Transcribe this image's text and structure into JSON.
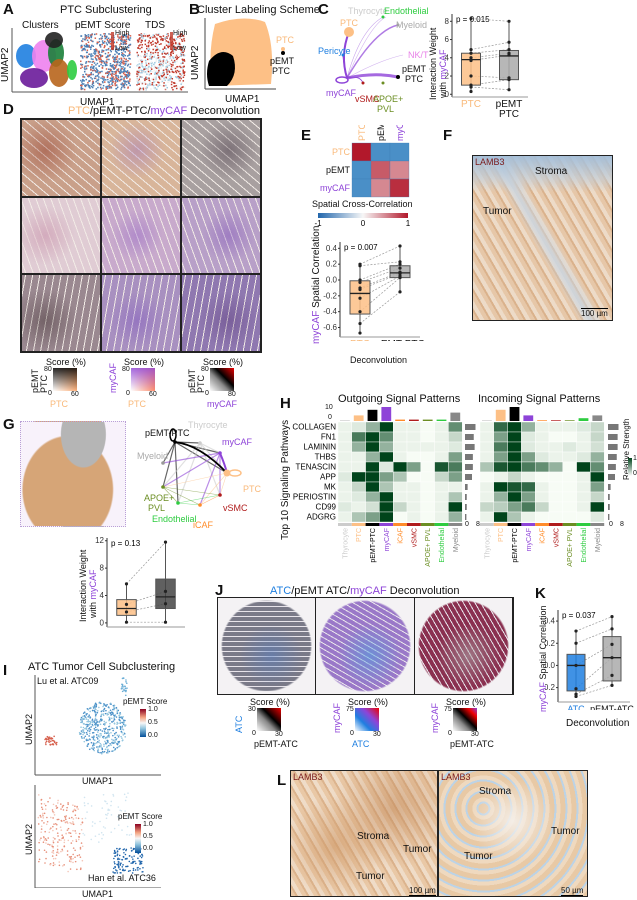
{
  "panels": {
    "A": "A",
    "B": "B",
    "C": "C",
    "D": "D",
    "E": "E",
    "F": "F",
    "G": "G",
    "H": "H",
    "I": "I",
    "J": "J",
    "K": "K",
    "L": "L"
  },
  "a": {
    "title": "PTC Subclustering",
    "sub": [
      "Clusters",
      "pEMT Score",
      "TDS"
    ],
    "high": "High",
    "low": "Low",
    "x": "UMAP1",
    "y": "UMAP2"
  },
  "b": {
    "title": "Cluster Labeling Scheme",
    "ptc": "PTC",
    "pemt": "pEMT",
    "pemt2": "PTC",
    "x": "UMAP1",
    "y": "UMAP2"
  },
  "c": {
    "nodes": [
      "Thyrocyte",
      "Endothelial",
      "PTC",
      "Myeloid",
      "Pericyte",
      "NK/T",
      "pEMT",
      "PTC",
      "myCAF",
      "vSMC",
      "APOE+",
      "PVL"
    ]
  },
  "d": {
    "title_ptc": "PTC",
    "title_sep1": "/pEMT-PTC/",
    "title_my": "myCAF",
    "title_rest": " Deconvolution",
    "legends": [
      {
        "score": "Score (%)",
        "ylab": "pEMT PTC",
        "xlab": "PTC",
        "ymax": "80",
        "xmax": "60",
        "zero": "0"
      },
      {
        "score": "Score (%)",
        "ylab": "myCAF",
        "xlab": "PTC",
        "ymax": "80",
        "xmax": "60",
        "zero": "0"
      },
      {
        "score": "Score (%)",
        "ylab": "pEMT PTC",
        "xlab": "myCAF",
        "ymax": "80",
        "xmax": "80",
        "zero": "0"
      }
    ]
  },
  "e": {
    "rows": [
      "PTC",
      "pEMT",
      "myCAF"
    ],
    "cols": [
      "PTC",
      "pEMT",
      "myCAF"
    ],
    "cbar_title": "Spatial Cross-Correlation",
    "cbar_ticks": [
      "-1",
      "0",
      "1"
    ],
    "ylab_my": "myCAF",
    "ylab_rest": " Spatial Correlation",
    "xlab": "Deconvolution"
  },
  "f": {
    "stain": "LAMB3",
    "stroma": "Stroma",
    "tumor": "Tumor",
    "scale": "100 µm"
  },
  "g": {
    "nodes": [
      "pEMT-PTC",
      "Thyrocyte",
      "myCAF",
      "Myeloid",
      "PTC",
      "APOE+",
      "PVL",
      "Endothelial",
      "iCAF",
      "vSMC"
    ]
  },
  "h": {
    "out_title": "Outgoing Signal Patterns",
    "in_title": "Incoming Signal Patterns",
    "ylab": "Top 10 Signaling Pathways",
    "legend": "Relative Strength",
    "leg_hi": "1",
    "leg_lo": "0",
    "top_hi": "10",
    "top_lo": "0",
    "bar_lo": "0",
    "bar_hi": "8"
  },
  "i": {
    "title": "ATC Tumor Cell Subclustering",
    "p1": "Lu et al. ATC09",
    "p2": "Han et al. ATC36",
    "legend": "pEMT Score",
    "ticks": [
      "1.0",
      "0.5",
      "0.0"
    ],
    "x": "UMAP1",
    "y": "UMAP2"
  },
  "j": {
    "title_atc": "ATC",
    "title_sep": "/pEMT ATC/",
    "title_my": "myCAF",
    "title_rest": " Deconvolution",
    "legends": [
      {
        "score": "Score (%)",
        "ylab": "ATC",
        "xlab": "pEMT-ATC",
        "ymax": "30",
        "xmax": "30",
        "zero": "0"
      },
      {
        "score": "Score (%)",
        "ylab": "myCAF",
        "xlab": "ATC",
        "ymax": "75",
        "xmax": "30",
        "zero": "0"
      },
      {
        "score": "Score (%)",
        "ylab": "myCAF",
        "xlab": "pEMT-ATC",
        "ymax": "75",
        "xmax": "30",
        "zero": "0"
      }
    ]
  },
  "k": {
    "ylab_my": "myCAF",
    "ylab_rest": " Spatial Correlation",
    "xlab": "Deconvolution"
  },
  "l": {
    "stain": "LAMB3",
    "stroma": "Stroma",
    "tumor": "Tumor",
    "scale1": "100 µm",
    "scale2": "50 µm"
  },
  "colors": {
    "ptc": "#fdc086",
    "pemt": "#000000",
    "mycaf": "#8e44d8",
    "atc": "#1f7fe0",
    "heat": "#00441b"
  },
  "chart_data": [
    {
      "id": "C",
      "type": "box",
      "title": "",
      "p": "p = 0.015",
      "ylabel": "Interaction Weight with myCAF",
      "ylim": [
        -0.3,
        8.8
      ],
      "yticks": [
        0,
        2,
        4,
        6,
        8
      ],
      "groups": [
        {
          "name": "PTC",
          "color": "#fdc086",
          "q1": 1,
          "median": 3.8,
          "q3": 4.5,
          "points": [
            8.3,
            4.9,
            4.5,
            4,
            3.7,
            2,
            1,
            0.8,
            0.3
          ]
        },
        {
          "name": "pEMT PTC",
          "color": "#aaaaaa",
          "q1": 1.6,
          "median": 4.2,
          "q3": 4.8,
          "points": [
            8,
            5.7,
            4.9,
            4.5,
            4.3,
            1.8,
            1.6,
            0.5
          ]
        }
      ]
    },
    {
      "id": "E-heat",
      "type": "heatmap",
      "rows": [
        "PTC",
        "pEMT",
        "myCAF"
      ],
      "cols": [
        "PTC",
        "pEMT",
        "myCAF"
      ],
      "values": [
        [
          1,
          -0.5,
          -0.5
        ],
        [
          -0.5,
          0.7,
          0.5
        ],
        [
          -0.5,
          0.5,
          0.9
        ]
      ],
      "clim": [
        -1,
        1
      ]
    },
    {
      "id": "E",
      "type": "box",
      "p": "p = 0.007",
      "ylabel": "myCAF Spatial Correlation",
      "xlabel": "Deconvolution",
      "ylim": [
        -0.72,
        0.48
      ],
      "yticks": [
        -0.6,
        -0.4,
        -0.2,
        0.0,
        0.2,
        0.4
      ],
      "groups": [
        {
          "name": "PTC",
          "color": "#fdc086",
          "q1": -0.43,
          "median": -0.17,
          "q3": -0.01,
          "points": [
            0.2,
            0.18,
            0.0,
            -0.03,
            -0.1,
            -0.12,
            -0.23,
            -0.4,
            -0.55,
            -0.67
          ]
        },
        {
          "name": "pEMT-PTC",
          "color": "#aaaaaa",
          "q1": 0.03,
          "median": 0.09,
          "q3": 0.18,
          "points": [
            0.43,
            0.23,
            0.2,
            0.15,
            0.1,
            0.08,
            0.05,
            0.03,
            -0.15
          ]
        }
      ]
    },
    {
      "id": "G",
      "type": "box",
      "p": "p = 0.13",
      "ylabel": "Interaction Weight with myCAF",
      "ylim": [
        -0.6,
        12.4
      ],
      "yticks": [
        0,
        4,
        8,
        12
      ],
      "groups": [
        {
          "name": "PTC",
          "color": "#fdc086",
          "q1": 1.1,
          "median": 2.1,
          "q3": 3.4,
          "points": [
            5.7,
            2.7,
            1.6,
            0.1
          ]
        },
        {
          "name": "pEMT PTC",
          "color": "#444444",
          "q1": 2.1,
          "median": 3.8,
          "q3": 6.4,
          "points": [
            11.8,
            4.6,
            2.8,
            0.1
          ]
        }
      ]
    },
    {
      "id": "K",
      "type": "box",
      "p": "p = 0.037",
      "ylabel": "myCAF Spatial Correlation",
      "xlabel": "Deconvolution",
      "ylim": [
        -0.33,
        0.5
      ],
      "yticks": [
        -0.2,
        0.0,
        0.2,
        0.4
      ],
      "groups": [
        {
          "name": "ATC",
          "color": "#1f7fe0",
          "q1": -0.23,
          "median": 0,
          "q3": 0.1,
          "points": [
            0.31,
            0.2,
            0,
            -0.21,
            -0.26,
            -0.28
          ]
        },
        {
          "name": "pEMT-ATC",
          "color": "#aaaaaa",
          "q1": -0.14,
          "median": 0.07,
          "q3": 0.26,
          "points": [
            0.44,
            0.33,
            0.19,
            0.07,
            -0.09,
            -0.18
          ]
        }
      ]
    },
    {
      "id": "H",
      "type": "heatmap",
      "rows": [
        "COLLAGEN",
        "FN1",
        "LAMININ",
        "THBS",
        "TENASCIN",
        "APP",
        "MK",
        "PERIOSTIN",
        "CD99",
        "ADGRG"
      ],
      "cols": [
        "Thyrocyte",
        "PTC",
        "pEMT-PTC",
        "myCAF",
        "iCAF",
        "vSMC",
        "APOE+ PVL",
        "Endothelial",
        "Myeloid"
      ],
      "col_colors": [
        "#cccccc",
        "#fdc086",
        "#000000",
        "#8e44d8",
        "#ff8c2a",
        "#b01c1c",
        "#6b8e23",
        "#2ecc40",
        "#888888"
      ],
      "outgoing": [
        [
          0.05,
          0.1,
          0.4,
          1,
          0.05,
          0.05,
          0,
          0.05,
          0.6
        ],
        [
          0.05,
          0.7,
          1,
          0.6,
          0.05,
          0.05,
          0,
          0.05,
          0.2
        ],
        [
          0.05,
          0.4,
          1,
          0.4,
          0.05,
          0.05,
          0.05,
          0.05,
          0.1
        ],
        [
          0.05,
          0.05,
          0.4,
          1,
          0.05,
          0,
          0,
          0.05,
          0.5
        ],
        [
          0.05,
          0.05,
          1,
          0.1,
          1,
          0.5,
          0,
          0.9,
          0.7
        ],
        [
          0.1,
          1,
          1,
          0.5,
          0.3,
          0,
          0,
          0.2,
          0.5
        ],
        [
          0.05,
          0.2,
          1,
          0.3,
          0.05,
          0.05,
          0,
          0.05,
          0.05
        ],
        [
          0.05,
          0.1,
          0.4,
          1,
          0.05,
          0.05,
          0,
          0.05,
          0.3
        ],
        [
          0.1,
          0.05,
          0.15,
          1,
          0.2,
          0.05,
          0,
          0.05,
          1
        ],
        [
          0.05,
          0.3,
          0.5,
          1,
          0,
          0.05,
          0,
          0.05,
          0.4
        ]
      ],
      "incoming": [
        [
          0.05,
          0.8,
          1,
          0.4,
          0.05,
          0.05,
          0.05,
          0.1,
          0.2
        ],
        [
          0.05,
          0.5,
          1,
          0.1,
          0.05,
          0,
          0,
          0.05,
          0.2
        ],
        [
          0.05,
          0.7,
          1,
          0.1,
          0.05,
          0.05,
          0.1,
          0.05,
          0.15
        ],
        [
          0.05,
          0.5,
          1,
          0.5,
          0.1,
          0.05,
          0.05,
          0.1,
          0.4
        ],
        [
          0.3,
          0.9,
          1,
          0.7,
          0.6,
          0.4,
          0,
          1,
          0.6
        ],
        [
          0,
          0.05,
          0.2,
          0.05,
          0,
          0,
          0,
          0.05,
          1
        ],
        [
          0.05,
          1,
          0.9,
          0.8,
          0.05,
          0,
          0,
          0.05,
          0.5
        ],
        [
          0.05,
          0.4,
          1,
          0.5,
          0.05,
          0,
          0,
          0.05,
          0.2
        ],
        [
          0.2,
          0.25,
          0.5,
          0.7,
          0.2,
          0,
          0,
          0.05,
          1
        ],
        [
          0.05,
          1,
          0.3,
          0.05,
          0,
          0,
          0,
          0,
          0.1
        ]
      ],
      "out_row_totals": [
        6,
        5,
        5.5,
        4.5,
        4.5,
        4,
        1.5,
        1,
        1,
        0.8
      ],
      "in_row_totals": [
        6,
        5.5,
        5.5,
        5,
        4.5,
        4,
        1.5,
        1,
        1,
        0.8
      ],
      "out_col_totals": [
        0.5,
        4,
        8,
        10,
        1,
        1,
        1,
        1,
        6
      ],
      "in_col_totals": [
        0.5,
        8,
        10,
        4,
        0.5,
        0.5,
        0.5,
        2,
        4
      ],
      "row_lim": [
        0,
        8
      ],
      "col_lim": [
        0,
        10
      ]
    }
  ]
}
